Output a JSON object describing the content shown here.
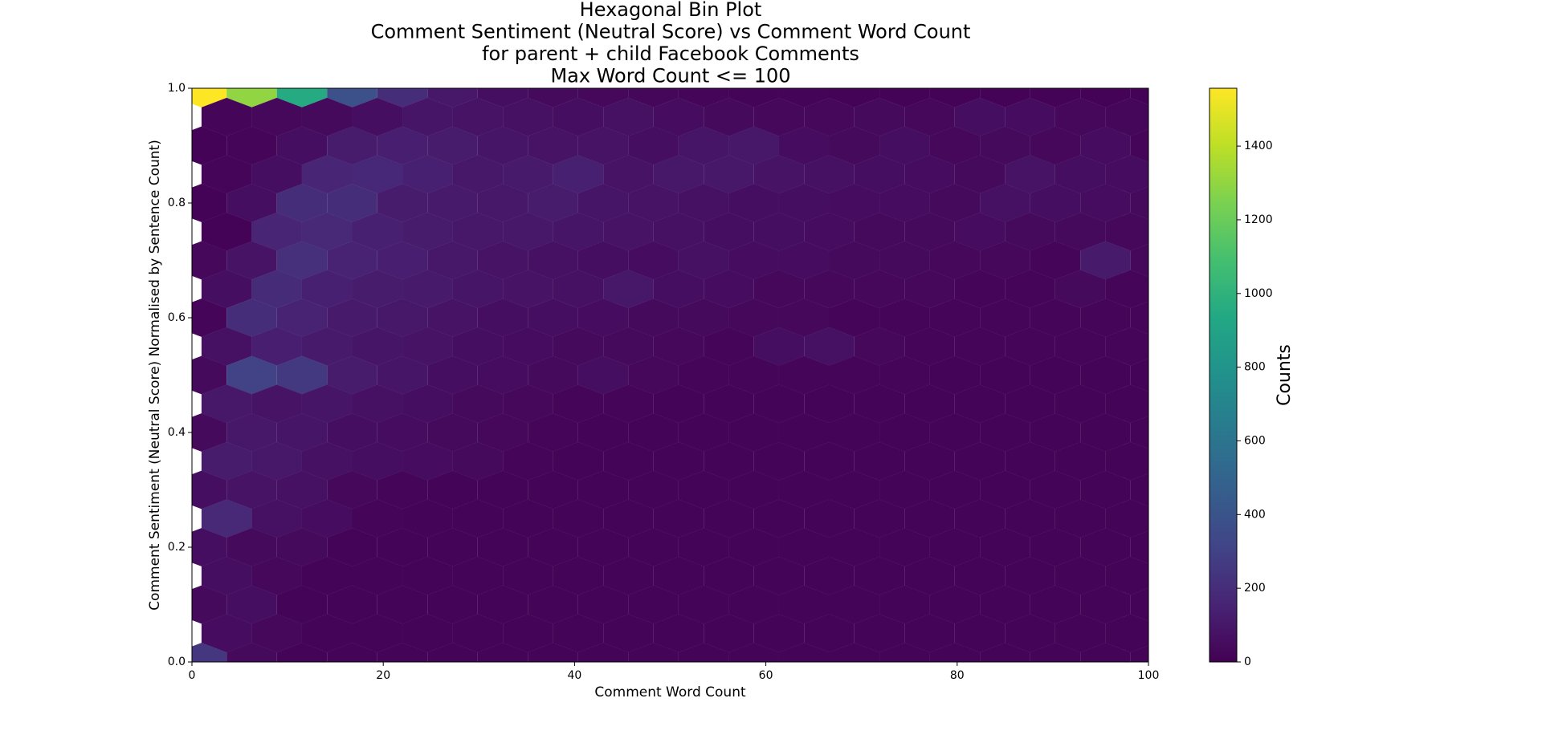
{
  "chart_data": {
    "type": "hexbin",
    "title_lines": [
      "Hexagonal Bin Plot",
      "Comment Sentiment (Neutral Score) vs Comment Word Count",
      "for parent + child Facebook Comments",
      "Max Word Count <= 100"
    ],
    "x_label": "Comment Word Count",
    "y_label": "Comment Sentiment (Neutral Score) Normalised by Sentence Count)",
    "xlim": [
      0,
      100
    ],
    "ylim": [
      0,
      1
    ],
    "xticks": [
      0,
      20,
      40,
      60,
      80,
      100
    ],
    "yticks": [
      {
        "value": 0,
        "label": "0.0"
      },
      {
        "value": 0.2,
        "label": "0.2"
      },
      {
        "value": 0.4,
        "label": "0.4"
      },
      {
        "value": 0.6,
        "label": "0.6"
      },
      {
        "value": 0.8,
        "label": "0.8"
      },
      {
        "value": 1,
        "label": "1.0"
      }
    ],
    "cmap": "viridis",
    "colorbar": {
      "label": "Counts",
      "lim": [
        0,
        1557
      ],
      "ticks": [
        0,
        200,
        400,
        600,
        800,
        1000,
        1200,
        1400
      ]
    },
    "rows": [
      {
        "y": 1.0,
        "x": [
          1,
          6.25,
          11.5,
          16.75,
          22,
          27.25,
          32.5,
          37.75,
          43,
          48.25,
          53.5,
          58.75,
          64,
          69.25,
          74.5,
          79.75,
          85,
          90.25,
          95.5,
          100.75
        ],
        "values": [
          1557,
          1300,
          950,
          380,
          200,
          100,
          60,
          40,
          30,
          25,
          20,
          15,
          15,
          10,
          10,
          10,
          10,
          8,
          8,
          8
        ]
      },
      {
        "y": 0.95,
        "x": [
          3.625,
          8.875,
          14.125,
          19.375,
          24.625,
          29.875,
          35.125,
          40.375,
          45.625,
          50.875,
          56.125,
          61.375,
          66.625,
          71.875,
          77.125,
          82.375,
          87.625,
          92.875,
          98.125
        ],
        "values": [
          20,
          30,
          40,
          60,
          90,
          80,
          70,
          60,
          70,
          50,
          40,
          30,
          30,
          40,
          30,
          60,
          50,
          30,
          25
        ]
      },
      {
        "y": 0.9,
        "x": [
          1,
          6.25,
          11.5,
          16.75,
          22,
          27.25,
          32.5,
          37.75,
          43,
          48.25,
          53.5,
          58.75,
          64,
          69.25,
          74.5,
          79.75,
          85,
          90.25,
          95.5,
          100.75
        ],
        "values": [
          10,
          20,
          60,
          120,
          130,
          120,
          90,
          80,
          80,
          60,
          90,
          100,
          50,
          40,
          60,
          30,
          40,
          30,
          50,
          20
        ]
      },
      {
        "y": 0.85,
        "x": [
          3.625,
          8.875,
          14.125,
          19.375,
          24.625,
          29.875,
          35.125,
          40.375,
          45.625,
          50.875,
          56.125,
          61.375,
          66.625,
          71.875,
          77.125,
          82.375,
          87.625,
          92.875,
          98.125
        ],
        "values": [
          20,
          60,
          160,
          170,
          140,
          100,
          110,
          140,
          80,
          100,
          100,
          80,
          70,
          60,
          50,
          40,
          80,
          60,
          50
        ]
      },
      {
        "y": 0.8,
        "x": [
          1,
          6.25,
          11.5,
          16.75,
          22,
          27.25,
          32.5,
          37.75,
          43,
          48.25,
          53.5,
          58.75,
          64,
          69.25,
          74.5,
          79.75,
          85,
          90.25,
          95.5,
          100.75
        ],
        "values": [
          10,
          60,
          200,
          200,
          120,
          110,
          100,
          120,
          90,
          80,
          70,
          60,
          60,
          50,
          50,
          40,
          70,
          60,
          50,
          40
        ]
      },
      {
        "y": 0.75,
        "x": [
          3.625,
          8.875,
          14.125,
          19.375,
          24.625,
          29.875,
          35.125,
          40.375,
          45.625,
          50.875,
          56.125,
          61.375,
          66.625,
          71.875,
          77.125,
          82.375,
          87.625,
          92.875,
          98.125
        ],
        "values": [
          10,
          160,
          180,
          140,
          120,
          100,
          100,
          90,
          80,
          70,
          60,
          60,
          50,
          40,
          40,
          50,
          40,
          40,
          30
        ]
      },
      {
        "y": 0.7,
        "x": [
          1,
          6.25,
          11.5,
          16.75,
          22,
          27.25,
          32.5,
          37.75,
          43,
          48.25,
          53.5,
          58.75,
          64,
          69.25,
          74.5,
          79.75,
          85,
          90.25,
          95.5,
          100.75
        ],
        "values": [
          30,
          80,
          210,
          150,
          130,
          100,
          80,
          70,
          60,
          50,
          70,
          50,
          50,
          40,
          40,
          30,
          30,
          20,
          110,
          30
        ]
      },
      {
        "y": 0.65,
        "x": [
          3.625,
          8.875,
          14.125,
          19.375,
          24.625,
          29.875,
          35.125,
          40.375,
          45.625,
          50.875,
          56.125,
          61.375,
          66.625,
          71.875,
          77.125,
          82.375,
          87.625,
          92.875,
          98.125
        ],
        "values": [
          60,
          190,
          140,
          120,
          110,
          90,
          80,
          70,
          100,
          60,
          50,
          30,
          30,
          30,
          30,
          20,
          20,
          40,
          20
        ]
      },
      {
        "y": 0.6,
        "x": [
          1,
          6.25,
          11.5,
          16.75,
          22,
          27.25,
          32.5,
          37.75,
          43,
          48.25,
          53.5,
          58.75,
          64,
          69.25,
          74.5,
          79.75,
          85,
          90.25,
          95.5,
          100.75
        ],
        "values": [
          20,
          200,
          150,
          110,
          100,
          80,
          60,
          60,
          50,
          40,
          40,
          30,
          30,
          20,
          20,
          20,
          20,
          20,
          20,
          20
        ]
      },
      {
        "y": 0.55,
        "x": [
          3.625,
          8.875,
          14.125,
          19.375,
          24.625,
          29.875,
          35.125,
          40.375,
          45.625,
          50.875,
          56.125,
          61.375,
          66.625,
          71.875,
          77.125,
          82.375,
          87.625,
          92.875,
          98.125
        ],
        "values": [
          70,
          130,
          110,
          90,
          80,
          60,
          50,
          40,
          40,
          30,
          20,
          60,
          70,
          30,
          20,
          20,
          20,
          20,
          20
        ]
      },
      {
        "y": 0.5,
        "x": [
          1,
          6.25,
          11.5,
          16.75,
          22,
          27.25,
          32.5,
          37.75,
          43,
          48.25,
          53.5,
          58.75,
          64,
          69.25,
          74.5,
          79.75,
          85,
          90.25,
          95.5,
          100.75
        ],
        "values": [
          40,
          300,
          260,
          120,
          90,
          60,
          50,
          40,
          60,
          30,
          20,
          20,
          20,
          20,
          20,
          15,
          15,
          15,
          15,
          15
        ]
      },
      {
        "y": 0.45,
        "x": [
          3.625,
          8.875,
          14.125,
          19.375,
          24.625,
          29.875,
          35.125,
          40.375,
          45.625,
          50.875,
          56.125,
          61.375,
          66.625,
          71.875,
          77.125,
          82.375,
          87.625,
          92.875,
          98.125
        ],
        "values": [
          100,
          80,
          90,
          70,
          60,
          40,
          30,
          20,
          20,
          15,
          15,
          15,
          15,
          15,
          15,
          15,
          15,
          15,
          15
        ]
      },
      {
        "y": 0.4,
        "x": [
          1,
          6.25,
          11.5,
          16.75,
          22,
          27.25,
          32.5,
          37.75,
          43,
          48.25,
          53.5,
          58.75,
          64,
          69.25,
          74.5,
          79.75,
          85,
          90.25,
          95.5,
          100.75
        ],
        "values": [
          40,
          100,
          90,
          60,
          50,
          40,
          30,
          20,
          15,
          15,
          15,
          15,
          15,
          15,
          15,
          15,
          15,
          15,
          15,
          15
        ]
      },
      {
        "y": 0.35,
        "x": [
          3.625,
          8.875,
          14.125,
          19.375,
          24.625,
          29.875,
          35.125,
          40.375,
          45.625,
          50.875,
          56.125,
          61.375,
          66.625,
          71.875,
          77.125,
          82.375,
          87.625,
          92.875,
          98.125
        ],
        "values": [
          120,
          100,
          70,
          60,
          50,
          40,
          20,
          15,
          15,
          15,
          15,
          15,
          15,
          15,
          15,
          15,
          15,
          15,
          15
        ]
      },
      {
        "y": 0.3,
        "x": [
          1,
          6.25,
          11.5,
          16.75,
          22,
          27.25,
          32.5,
          37.75,
          43,
          48.25,
          53.5,
          58.75,
          64,
          69.25,
          74.5,
          79.75,
          85,
          90.25,
          95.5,
          100.75
        ],
        "values": [
          60,
          80,
          70,
          30,
          20,
          15,
          15,
          15,
          15,
          15,
          15,
          15,
          15,
          15,
          15,
          15,
          15,
          15,
          15,
          15
        ]
      },
      {
        "y": 0.25,
        "x": [
          3.625,
          8.875,
          14.125,
          19.375,
          24.625,
          29.875,
          35.125,
          40.375,
          45.625,
          50.875,
          56.125,
          61.375,
          66.625,
          71.875,
          77.125,
          82.375,
          87.625,
          92.875,
          98.125
        ],
        "values": [
          180,
          70,
          50,
          20,
          15,
          15,
          15,
          15,
          15,
          15,
          15,
          15,
          15,
          15,
          15,
          15,
          15,
          15,
          15
        ]
      },
      {
        "y": 0.2,
        "x": [
          1,
          6.25,
          11.5,
          16.75,
          22,
          27.25,
          32.5,
          37.75,
          43,
          48.25,
          53.5,
          58.75,
          64,
          69.25,
          74.5,
          79.75,
          85,
          90.25,
          95.5,
          100.75
        ],
        "values": [
          60,
          40,
          40,
          15,
          15,
          15,
          15,
          15,
          15,
          15,
          15,
          15,
          15,
          15,
          15,
          15,
          15,
          15,
          15,
          15
        ]
      },
      {
        "y": 0.15,
        "x": [
          3.625,
          8.875,
          14.125,
          19.375,
          24.625,
          29.875,
          35.125,
          40.375,
          45.625,
          50.875,
          56.125,
          61.375,
          66.625,
          71.875,
          77.125,
          82.375,
          87.625,
          92.875,
          98.125
        ],
        "values": [
          60,
          30,
          15,
          15,
          15,
          15,
          15,
          15,
          15,
          15,
          15,
          15,
          15,
          15,
          15,
          15,
          15,
          15,
          15
        ]
      },
      {
        "y": 0.1,
        "x": [
          1,
          6.25,
          11.5,
          16.75,
          22,
          27.25,
          32.5,
          37.75,
          43,
          48.25,
          53.5,
          58.75,
          64,
          69.25,
          74.5,
          79.75,
          85,
          90.25,
          95.5,
          100.75
        ],
        "values": [
          40,
          60,
          15,
          15,
          15,
          15,
          15,
          15,
          15,
          15,
          15,
          15,
          15,
          15,
          15,
          15,
          15,
          15,
          15,
          15
        ]
      },
      {
        "y": 0.05,
        "x": [
          3.625,
          8.875,
          14.125,
          19.375,
          24.625,
          29.875,
          35.125,
          40.375,
          45.625,
          50.875,
          56.125,
          61.375,
          66.625,
          71.875,
          77.125,
          82.375,
          87.625,
          92.875,
          98.125
        ],
        "values": [
          50,
          30,
          15,
          15,
          15,
          15,
          15,
          15,
          15,
          15,
          15,
          15,
          15,
          15,
          15,
          15,
          15,
          15,
          15
        ]
      },
      {
        "y": 0.0,
        "x": [
          1,
          6.25,
          11.5,
          16.75,
          22,
          27.25,
          32.5,
          37.75,
          43,
          48.25,
          53.5,
          58.75,
          64,
          69.25,
          74.5,
          79.75,
          85,
          90.25,
          95.5,
          100.75
        ],
        "values": [
          250,
          40,
          15,
          15,
          15,
          15,
          15,
          15,
          15,
          15,
          15,
          15,
          15,
          15,
          15,
          15,
          15,
          15,
          15,
          15
        ]
      }
    ]
  }
}
